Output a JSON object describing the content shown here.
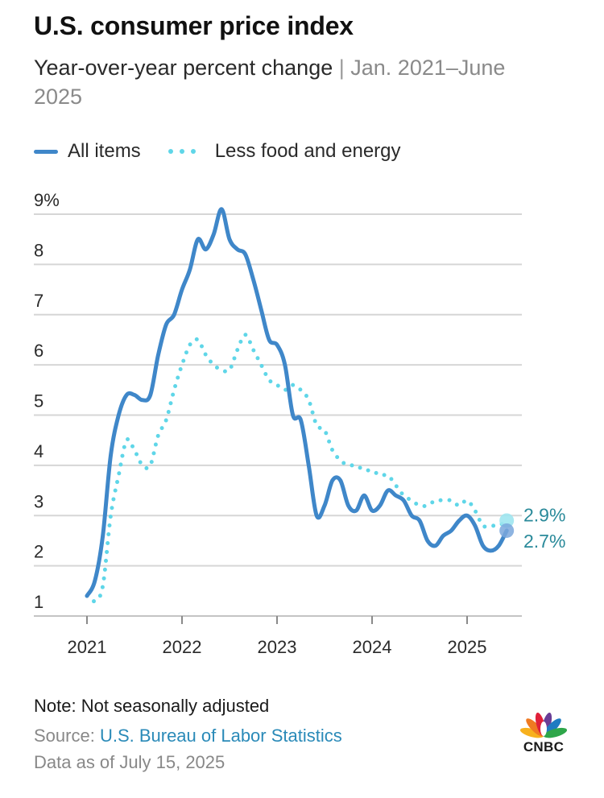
{
  "header": {
    "title": "U.S. consumer price index",
    "subtitle_main": "Year-over-year percent change",
    "subtitle_sep": " | ",
    "subtitle_range": "Jan. 2021–June 2025"
  },
  "legend": {
    "all_items": "All items",
    "core": "Less food and energy"
  },
  "footer": {
    "note": "Note: Not seasonally adjusted",
    "source_label": "Source: ",
    "source_name": "U.S. Bureau of Labor Statistics",
    "as_of": "Data as of July 15, 2025"
  },
  "logo": {
    "text": "CNBC"
  },
  "colors": {
    "all_items": "#3f87c9",
    "core": "#5fd6e8",
    "grid": "#d6d6d6",
    "end_label": "#2a8a9a"
  },
  "chart_data": {
    "type": "line",
    "title": "U.S. consumer price index",
    "subtitle": "Year-over-year percent change | Jan. 2021–June 2025",
    "ylabel": "",
    "xlabel": "",
    "ylim": [
      1,
      9
    ],
    "yticks": [
      1,
      2,
      3,
      4,
      5,
      6,
      7,
      8,
      9
    ],
    "ytick_labels": [
      "1",
      "2",
      "3",
      "4",
      "5",
      "6",
      "7",
      "8",
      "9%"
    ],
    "xticks": [
      "2021",
      "2022",
      "2023",
      "2024",
      "2025"
    ],
    "x_start": "2021-01",
    "x_end": "2025-06",
    "grid": true,
    "legend_position": "top-left",
    "series": [
      {
        "name": "All items",
        "style": "solid",
        "values": [
          1.4,
          1.7,
          2.6,
          4.2,
          5.0,
          5.4,
          5.4,
          5.3,
          5.4,
          6.2,
          6.8,
          7.0,
          7.5,
          7.9,
          8.5,
          8.3,
          8.6,
          9.1,
          8.5,
          8.3,
          8.2,
          7.7,
          7.1,
          6.5,
          6.4,
          6.0,
          5.0,
          4.9,
          4.0,
          3.0,
          3.2,
          3.7,
          3.7,
          3.2,
          3.1,
          3.4,
          3.1,
          3.2,
          3.5,
          3.4,
          3.3,
          3.0,
          2.9,
          2.5,
          2.4,
          2.6,
          2.7,
          2.9,
          3.0,
          2.8,
          2.4,
          2.3,
          2.4,
          2.7
        ],
        "end_label": "2.7%"
      },
      {
        "name": "Less food and energy",
        "style": "dotted",
        "values": [
          1.4,
          1.3,
          1.6,
          3.0,
          3.8,
          4.5,
          4.3,
          4.0,
          4.0,
          4.6,
          4.9,
          5.5,
          6.0,
          6.4,
          6.5,
          6.2,
          6.0,
          5.9,
          5.9,
          6.3,
          6.6,
          6.3,
          6.0,
          5.7,
          5.6,
          5.5,
          5.6,
          5.5,
          5.3,
          4.8,
          4.7,
          4.3,
          4.1,
          4.0,
          4.0,
          3.9,
          3.9,
          3.8,
          3.8,
          3.6,
          3.4,
          3.3,
          3.2,
          3.2,
          3.3,
          3.3,
          3.3,
          3.2,
          3.3,
          3.1,
          2.8,
          2.8,
          2.8,
          2.9
        ],
        "end_label": "2.9%"
      }
    ]
  }
}
